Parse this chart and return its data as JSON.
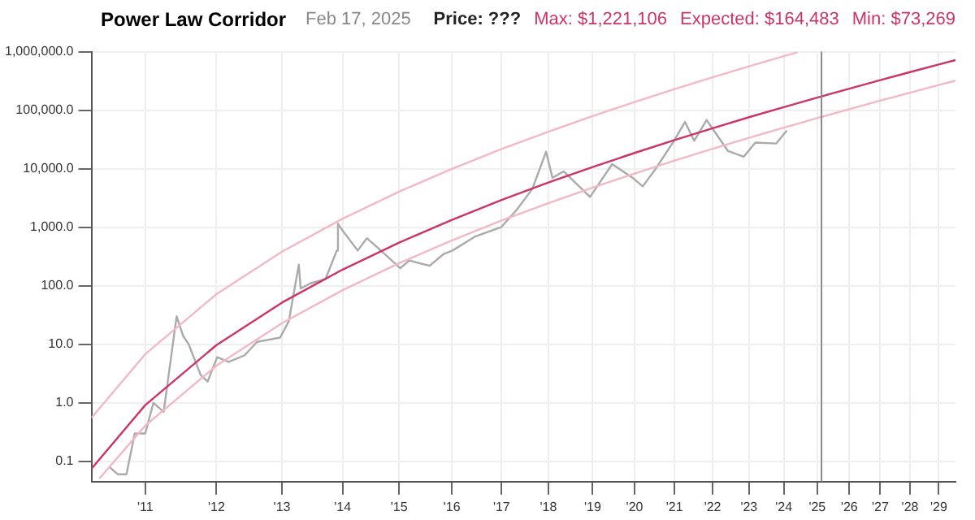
{
  "chart_data": {
    "type": "line",
    "title": "Power Law Corridor",
    "subtitle": "Feb 17, 2025",
    "annotations": [
      "Price: ???",
      "Max: $1,221,106",
      "Expected: $164,483",
      "Min: $73,269"
    ],
    "log": "xy",
    "grid": true,
    "legend": false,
    "marker": "none",
    "line_style": "solid",
    "xlim": [
      10.3,
      29.6
    ],
    "xticks": [
      {
        "value": 11,
        "label": "'11"
      },
      {
        "value": 12,
        "label": "'12"
      },
      {
        "value": 13,
        "label": "'13"
      },
      {
        "value": 14,
        "label": "'14"
      },
      {
        "value": 15,
        "label": "'15"
      },
      {
        "value": 16,
        "label": "'16"
      },
      {
        "value": 17,
        "label": "'17"
      },
      {
        "value": 18,
        "label": "'18"
      },
      {
        "value": 19,
        "label": "'19"
      },
      {
        "value": 20,
        "label": "'20"
      },
      {
        "value": 21,
        "label": "'21"
      },
      {
        "value": 22,
        "label": "'22"
      },
      {
        "value": 23,
        "label": "'23"
      },
      {
        "value": 24,
        "label": "'24"
      },
      {
        "value": 25,
        "label": "'25"
      },
      {
        "value": 26,
        "label": "'26"
      },
      {
        "value": 27,
        "label": "'27"
      },
      {
        "value": 28,
        "label": "'28"
      },
      {
        "value": 29,
        "label": "'29"
      }
    ],
    "ylim": [
      0.045,
      1000000
    ],
    "yticks": [
      0.1,
      {
        "value": 1,
        "label": "1.0"
      },
      {
        "value": 10,
        "label": "10.0"
      },
      {
        "value": 100,
        "label": "100.0"
      },
      {
        "value": 1000,
        "label": "1,000.0"
      },
      {
        "value": 10000,
        "label": "10,000.0"
      },
      {
        "value": 100000,
        "label": "100,000.0"
      },
      {
        "value": 1000000,
        "label": "1,000,000.0"
      }
    ],
    "ref_lines": [
      {
        "axis": "x",
        "value": 25.13,
        "color": "#888888"
      }
    ],
    "series": [
      {
        "color": "#f2b8c6",
        "x": [
          10.3,
          11,
          12,
          13,
          14,
          15,
          16,
          17,
          18,
          19,
          20,
          21,
          22,
          23,
          24,
          24.4
        ],
        "values": [
          0.554,
          6.78,
          72,
          383,
          1400,
          4060,
          9940,
          21700,
          43000,
          79400,
          138000,
          229000,
          365000,
          563000,
          838000,
          975000
        ]
      },
      {
        "color": "#f2b8c6",
        "x": [
          10.4,
          11,
          12,
          13,
          14,
          15,
          16,
          17,
          18,
          19,
          20,
          21,
          22,
          23,
          24,
          25,
          26,
          27,
          28,
          29,
          29.6
        ],
        "values": [
          0.0509,
          0.407,
          4.32,
          23,
          84.1,
          243,
          596,
          1300,
          2580,
          4760,
          8280,
          13800,
          21900,
          33800,
          50300,
          73200,
          104000,
          146000,
          199000,
          269000,
          320000
        ]
      },
      {
        "color": "#cc3366",
        "x": [
          10.3,
          11,
          12,
          13,
          14,
          15,
          16,
          17,
          18,
          19,
          20,
          21,
          22,
          23,
          24,
          25,
          26,
          27,
          28,
          29,
          29.6
        ],
        "values": [
          0.0747,
          0.914,
          9.7,
          51.6,
          189,
          547,
          1340,
          2920,
          5800,
          10700,
          18600,
          30900,
          49200,
          75900,
          113000,
          164000,
          234000,
          327000,
          448000,
          604000,
          718000
        ]
      },
      {
        "color": "#aaaaaa",
        "x": [
          10.53,
          10.64,
          10.75,
          10.86,
          11.0,
          11.11,
          11.25,
          11.43,
          11.52,
          11.6,
          11.77,
          11.87,
          12.01,
          12.18,
          12.42,
          12.61,
          12.97,
          13.11,
          13.27,
          13.3,
          13.46,
          13.71,
          13.9,
          13.92,
          14.01,
          14.26,
          14.42,
          14.67,
          15.02,
          15.19,
          15.57,
          15.84,
          16.01,
          16.47,
          16.99,
          17.32,
          17.65,
          17.95,
          18.09,
          18.34,
          18.94,
          19.46,
          19.95,
          20.2,
          20.5,
          20.96,
          21.27,
          21.51,
          21.84,
          22.42,
          22.85,
          23.18,
          23.78,
          24.09
        ],
        "values": [
          0.08,
          0.06,
          0.06,
          0.3,
          0.3,
          1.0,
          0.7,
          30,
          14,
          10,
          3,
          2.3,
          6,
          5,
          6.5,
          11,
          13,
          25,
          230,
          90,
          110,
          130,
          400,
          1150,
          850,
          400,
          650,
          400,
          200,
          270,
          220,
          350,
          400,
          700,
          1000,
          2000,
          4500,
          19500,
          7000,
          9000,
          3300,
          12000,
          7000,
          5000,
          9500,
          28000,
          63000,
          30000,
          68000,
          20000,
          16000,
          28000,
          27000,
          45000
        ]
      }
    ]
  }
}
